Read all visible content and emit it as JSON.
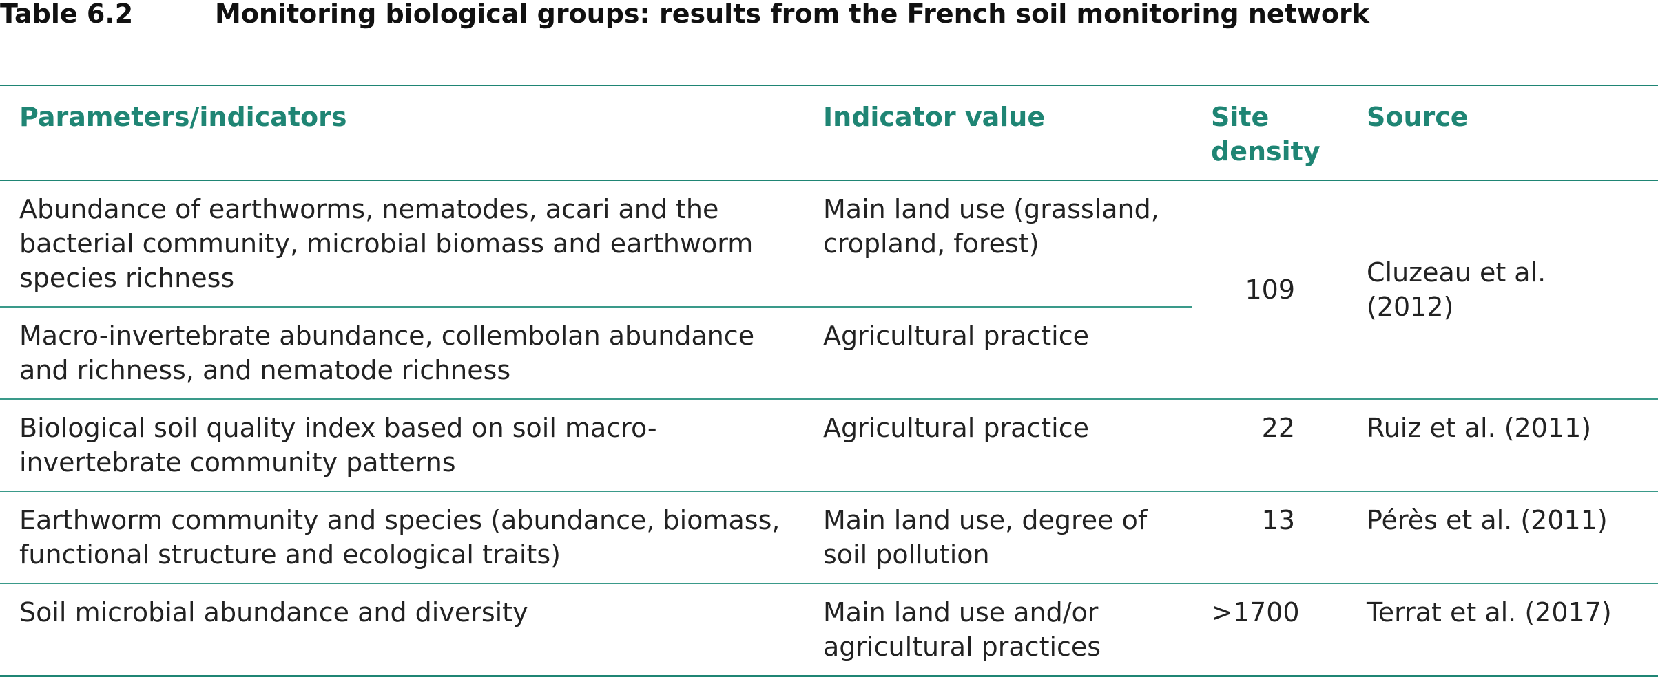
{
  "title": {
    "number": "Table 6.2",
    "text": "Monitoring biological groups: results from the French soil monitoring network"
  },
  "table": {
    "headers": [
      "Parameters/indicators",
      "Indicator value",
      "Site density",
      "Source"
    ],
    "rows": [
      {
        "parameters": "Abundance of earthworms, nematodes, acari and the bacterial community, microbial biomass and earthworm species richness",
        "indicator": "Main land use (grassland, cropland, forest)"
      },
      {
        "parameters": "Macro-invertebrate abundance, collembolan abundance and richness, and nematode richness",
        "indicator": "Agricultural practice"
      },
      {
        "parameters": "Biological soil quality index based on soil macro-invertebrate community patterns",
        "indicator": "Agricultural practice",
        "density": "22",
        "source": "Ruiz et al. (2011)"
      },
      {
        "parameters": "Earthworm community and species (abundance, biomass, functional structure and ecological traits)",
        "indicator": "Main land use, degree of soil pollution",
        "density": "13",
        "source": "Pérès et al. (2011)"
      },
      {
        "parameters": "Soil microbial abundance and diversity",
        "indicator": "Main land use and/or agricultural practices",
        "density": ">1700",
        "source": "Terrat et al. (2017)"
      }
    ],
    "merged": {
      "density": "109",
      "source": "Cluzeau et al. (2012)"
    }
  }
}
